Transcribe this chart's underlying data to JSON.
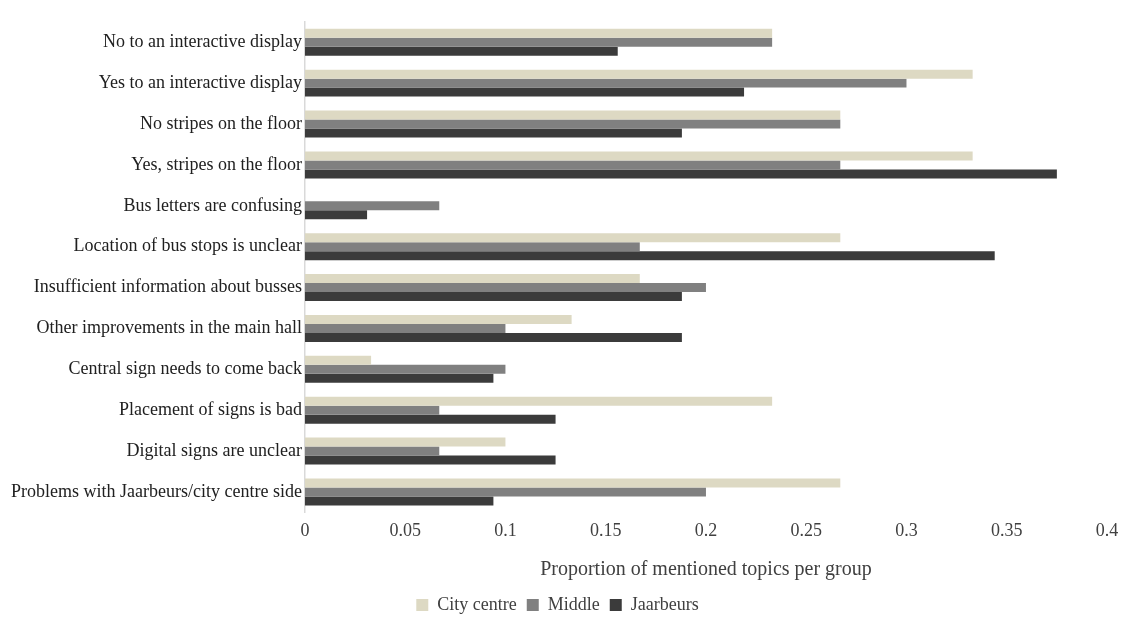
{
  "chart_data": {
    "type": "bar",
    "orientation": "horizontal",
    "xlabel": "Proportion of mentioned topics per group",
    "categories": [
      "No to an interactive display",
      "Yes to an interactive display",
      "No stripes on the floor",
      "Yes, stripes on the floor",
      "Bus letters are confusing",
      "Location of bus stops is unclear",
      "Insufficient information about busses",
      "Other improvements in the main hall",
      "Central sign needs to come back",
      "Placement of signs is bad",
      "Digital signs are unclear",
      "Problems with Jaarbeurs/city centre side"
    ],
    "series": [
      {
        "name": "City centre",
        "color": "#ddd9c3",
        "values": [
          0.233,
          0.333,
          0.267,
          0.333,
          0,
          0.267,
          0.167,
          0.133,
          0.033,
          0.233,
          0.1,
          0.267
        ]
      },
      {
        "name": "Middle",
        "color": "#808080",
        "values": [
          0.233,
          0.3,
          0.267,
          0.267,
          0.067,
          0.167,
          0.2,
          0.1,
          0.1,
          0.067,
          0.067,
          0.2
        ]
      },
      {
        "name": "Jaarbeurs",
        "color": "#3b3b3b",
        "values": [
          0.156,
          0.219,
          0.188,
          0.375,
          0.031,
          0.344,
          0.188,
          0.188,
          0.094,
          0.125,
          0.125,
          0.094
        ]
      }
    ],
    "xlim": [
      0,
      0.4
    ],
    "xticks": [
      0,
      0.05,
      0.1,
      0.15,
      0.2,
      0.25,
      0.3,
      0.35,
      0.4
    ],
    "grid": false,
    "legend": "bottom"
  }
}
